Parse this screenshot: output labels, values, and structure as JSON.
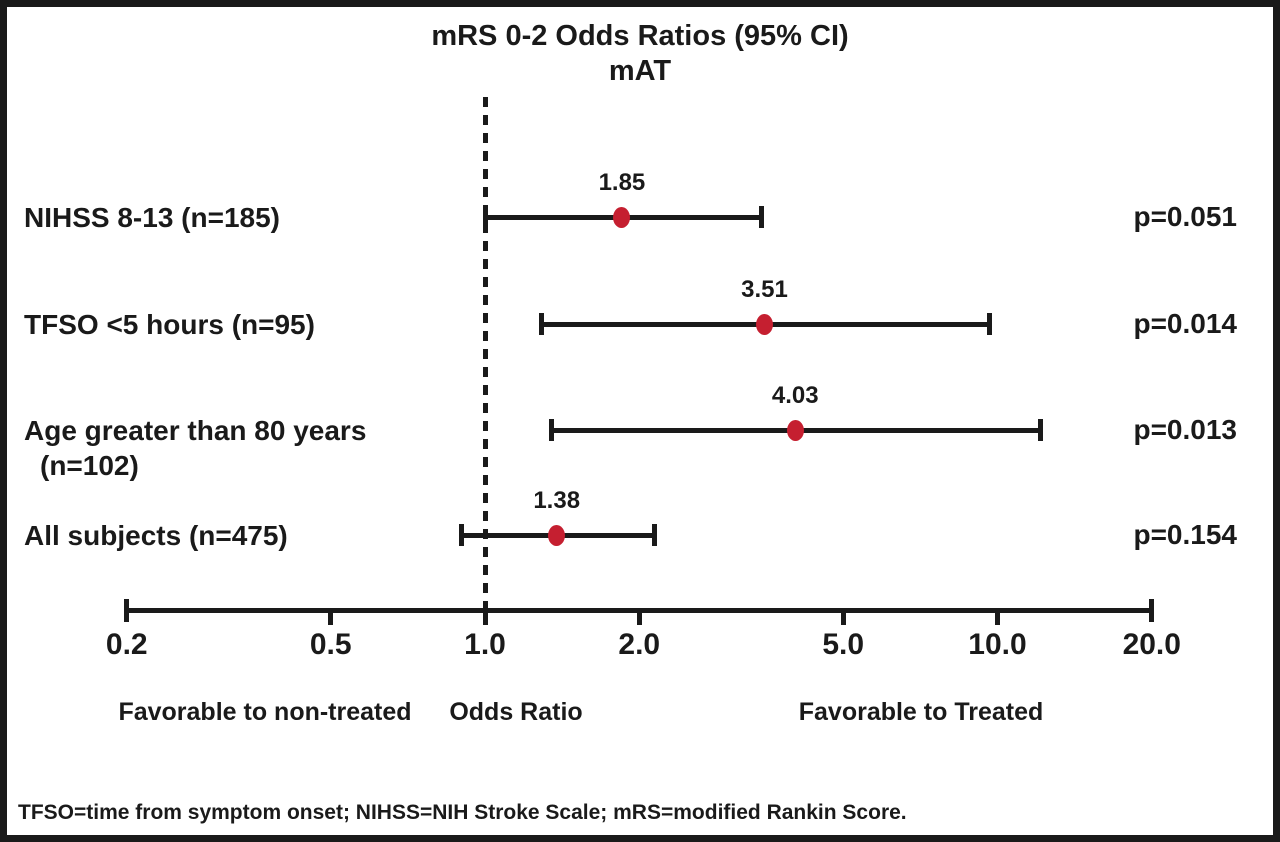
{
  "title": {
    "line1": "mRS 0-2 Odds Ratios (95% CI)",
    "line2": "mAT"
  },
  "chart_data": {
    "type": "forest",
    "x_axis": {
      "scale": "log",
      "ticks": [
        0.2,
        0.5,
        1.0,
        2.0,
        5.0,
        10.0,
        20.0
      ],
      "tick_labels": [
        "0.2",
        "0.5",
        "1.0",
        "2.0",
        "5.0",
        "10.0",
        "20.0"
      ],
      "range": [
        0.2,
        20.0
      ],
      "reference_line": 1.0,
      "axis_label": "Odds Ratio"
    },
    "rows": [
      {
        "label_lines": [
          "NIHSS 8-13 (n=185)"
        ],
        "or": 1.85,
        "or_label": "1.85",
        "ci_low": 1.0,
        "ci_high": 3.46,
        "p_label": "p=0.051"
      },
      {
        "label_lines": [
          "TFSO <5 hours (n=95)"
        ],
        "or": 3.51,
        "or_label": "3.51",
        "ci_low": 1.29,
        "ci_high": 9.63,
        "p_label": "p=0.014"
      },
      {
        "label_lines": [
          "Age greater than 80 years",
          "(n=102)"
        ],
        "or": 4.03,
        "or_label": "4.03",
        "ci_low": 1.35,
        "ci_high": 12.12,
        "p_label": "p=0.013"
      },
      {
        "label_lines": [
          "All subjects (n=475)"
        ],
        "or": 1.38,
        "or_label": "1.38",
        "ci_low": 0.9,
        "ci_high": 2.14,
        "p_label": "p=0.154"
      }
    ],
    "annotations": {
      "left": "Favorable to non-treated",
      "center": "Odds Ratio",
      "right": "Favorable to Treated"
    },
    "marker_color": "#c51f30",
    "line_color": "#1a1a1a"
  },
  "footnote": "TFSO=time from symptom onset; NIHSS=NIH Stroke Scale; mRS=modified Rankin Score."
}
